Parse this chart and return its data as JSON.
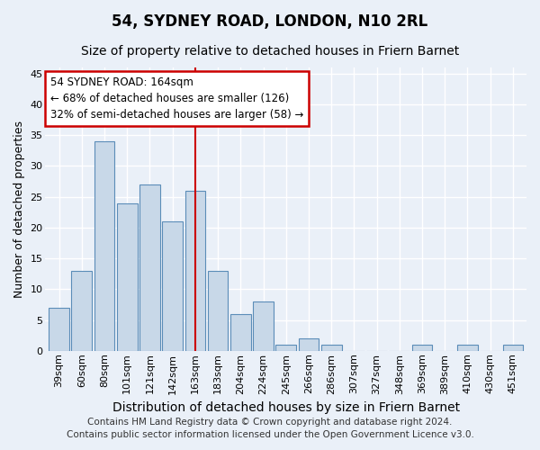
{
  "title": "54, SYDNEY ROAD, LONDON, N10 2RL",
  "subtitle": "Size of property relative to detached houses in Friern Barnet",
  "xlabel": "Distribution of detached houses by size in Friern Barnet",
  "ylabel": "Number of detached properties",
  "footer_line1": "Contains HM Land Registry data © Crown copyright and database right 2024.",
  "footer_line2": "Contains public sector information licensed under the Open Government Licence v3.0.",
  "categories": [
    "39sqm",
    "60sqm",
    "80sqm",
    "101sqm",
    "121sqm",
    "142sqm",
    "163sqm",
    "183sqm",
    "204sqm",
    "224sqm",
    "245sqm",
    "266sqm",
    "286sqm",
    "307sqm",
    "327sqm",
    "348sqm",
    "369sqm",
    "389sqm",
    "410sqm",
    "430sqm",
    "451sqm"
  ],
  "values": [
    7,
    13,
    34,
    24,
    27,
    21,
    26,
    13,
    6,
    8,
    1,
    2,
    1,
    0,
    0,
    0,
    1,
    0,
    1,
    0,
    1
  ],
  "bar_color": "#c8d8e8",
  "bar_edge_color": "#5b8db8",
  "vline_x": 6,
  "vline_color": "#cc0000",
  "annotation_line1": "54 SYDNEY ROAD: 164sqm",
  "annotation_line2": "← 68% of detached houses are smaller (126)",
  "annotation_line3": "32% of semi-detached houses are larger (58) →",
  "annotation_box_color": "#ffffff",
  "annotation_box_edge": "#cc0000",
  "ylim": [
    0,
    46
  ],
  "yticks": [
    0,
    5,
    10,
    15,
    20,
    25,
    30,
    35,
    40,
    45
  ],
  "bg_color": "#eaf0f8",
  "plot_bg_color": "#eaf0f8",
  "grid_color": "#ffffff",
  "title_fontsize": 12,
  "subtitle_fontsize": 10,
  "xlabel_fontsize": 10,
  "ylabel_fontsize": 9,
  "tick_fontsize": 8,
  "footer_fontsize": 7.5,
  "annotation_fontsize": 8.5
}
